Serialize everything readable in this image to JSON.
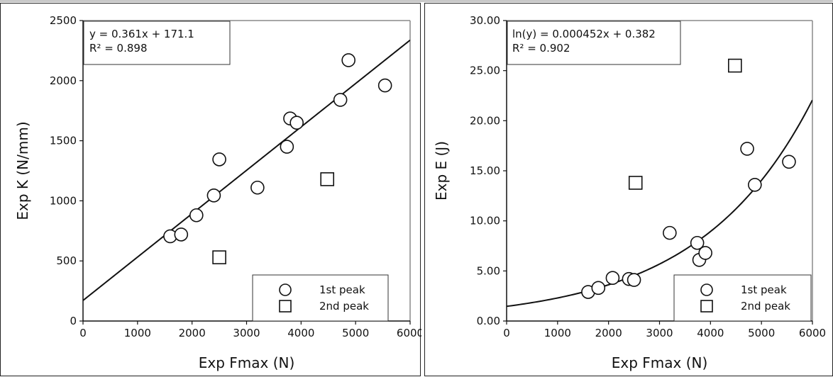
{
  "chart_data": [
    {
      "type": "scatter",
      "xlabel": "Exp Fmax (N)",
      "ylabel": "Exp K (N/mm)",
      "xlim": [
        0,
        6000
      ],
      "ylim": [
        0,
        2500
      ],
      "xticks": [
        0,
        1000,
        2000,
        3000,
        4000,
        5000,
        6000
      ],
      "xtick_labels": [
        "0",
        "1000",
        "2000",
        "3000",
        "4000",
        "5000",
        "6000"
      ],
      "yticks": [
        0,
        500,
        1000,
        1500,
        2000,
        2500
      ],
      "ytick_labels": [
        "0",
        "500",
        "1000",
        "1500",
        "2000",
        "2500"
      ],
      "fit": {
        "kind": "linear",
        "slope": 0.361,
        "intercept": 171.1
      },
      "equation": "y = 0.361x + 171.1",
      "r2": "R² = 0.898",
      "legend_position": "bottom-right",
      "series": [
        {
          "name": "1st peak",
          "marker": "circle",
          "points": [
            [
              1600,
              705
            ],
            [
              1800,
              720
            ],
            [
              2080,
              880
            ],
            [
              2400,
              1045
            ],
            [
              2500,
              1345
            ],
            [
              3200,
              1110
            ],
            [
              3740,
              1450
            ],
            [
              3800,
              1685
            ],
            [
              3920,
              1650
            ],
            [
              4720,
              1840
            ],
            [
              4870,
              2170
            ],
            [
              5540,
              1960
            ]
          ]
        },
        {
          "name": "2nd peak",
          "marker": "square",
          "points": [
            [
              2500,
              530
            ],
            [
              4480,
              1180
            ]
          ]
        }
      ]
    },
    {
      "type": "scatter",
      "xlabel": "Exp Fmax (N)",
      "ylabel": "Exp E (J)",
      "xlim": [
        0,
        6000
      ],
      "ylim": [
        0,
        30
      ],
      "xticks": [
        0,
        1000,
        2000,
        3000,
        4000,
        5000,
        6000
      ],
      "xtick_labels": [
        "0",
        "1000",
        "2000",
        "3000",
        "4000",
        "5000",
        "6000"
      ],
      "yticks": [
        0,
        5,
        10,
        15,
        20,
        25,
        30
      ],
      "ytick_labels": [
        "0.00",
        "5.00",
        "10.00",
        "15.00",
        "20.00",
        "25.00",
        "30.00"
      ],
      "fit": {
        "kind": "exponential",
        "b": 0.000452,
        "a": 0.382
      },
      "equation": "ln(y) = 0.000452x + 0.382",
      "r2": "R² = 0.902",
      "legend_position": "bottom-right",
      "series": [
        {
          "name": "1st peak",
          "marker": "circle",
          "points": [
            [
              1600,
              2.9
            ],
            [
              1800,
              3.3
            ],
            [
              2080,
              4.3
            ],
            [
              2400,
              4.2
            ],
            [
              2500,
              4.1
            ],
            [
              3200,
              8.8
            ],
            [
              3740,
              7.8
            ],
            [
              3780,
              6.1
            ],
            [
              3900,
              6.8
            ],
            [
              4720,
              17.2
            ],
            [
              4870,
              13.6
            ],
            [
              5540,
              15.9
            ]
          ]
        },
        {
          "name": "2nd peak",
          "marker": "square",
          "points": [
            [
              2530,
              13.8
            ],
            [
              4480,
              25.5
            ]
          ]
        }
      ]
    }
  ]
}
